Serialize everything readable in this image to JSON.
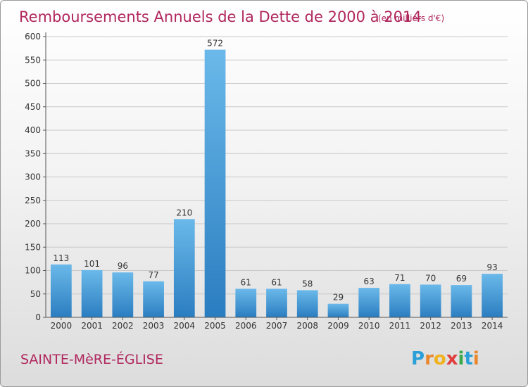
{
  "title": "Remboursements Annuels de la Dette de 2000 à 2014",
  "subtitle": "(en milliers d'€)",
  "location": "SAINTE-MèRE-ÉGLISE",
  "brand": {
    "name": "Proxiti",
    "letters": [
      "P",
      "r",
      "o",
      "x",
      "i",
      "t",
      "i"
    ],
    "letter_colors": [
      "#2a9fd8",
      "#e8872a",
      "#f0b21d",
      "#e23d3d",
      "#3aa84a",
      "#2a9fd8",
      "#e8872a"
    ]
  },
  "colors": {
    "title": "#b0275d",
    "location": "#b0275d",
    "bar_light": "#6bb9ea",
    "bar_dark": "#2a7dc0",
    "grid": "#c8c8c8",
    "axis": "#555555",
    "text": "#333333"
  },
  "chart_data": {
    "type": "bar",
    "categories": [
      "2000",
      "2001",
      "2002",
      "2003",
      "2004",
      "2005",
      "2006",
      "2007",
      "2008",
      "2009",
      "2010",
      "2011",
      "2012",
      "2013",
      "2014"
    ],
    "values": [
      113,
      101,
      96,
      77,
      210,
      572,
      61,
      61,
      58,
      29,
      63,
      71,
      70,
      69,
      93
    ],
    "ylim": [
      0,
      600
    ],
    "yticks": [
      0,
      50,
      100,
      150,
      200,
      250,
      300,
      350,
      400,
      450,
      500,
      550,
      600
    ],
    "grid": true,
    "data_labels": true
  }
}
